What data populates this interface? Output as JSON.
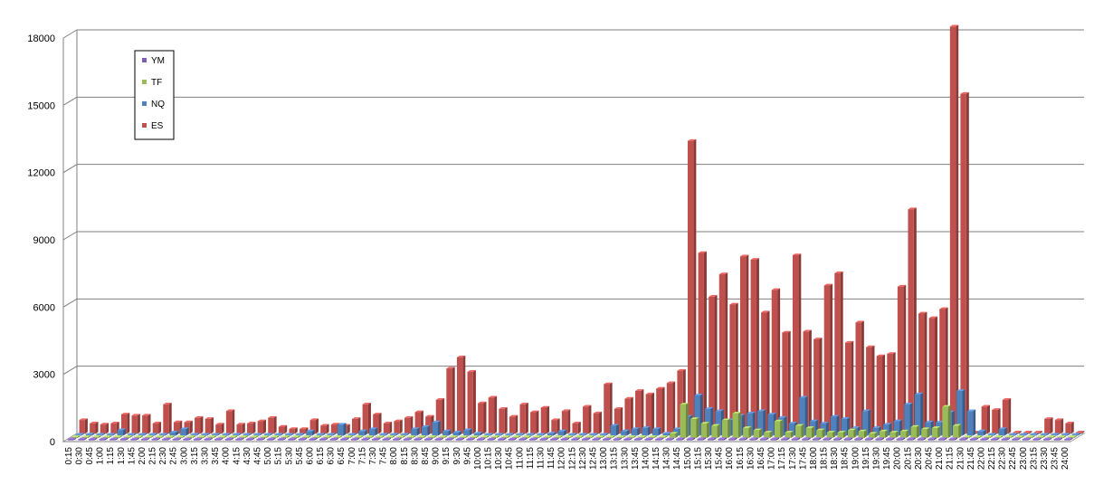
{
  "chart_data": {
    "type": "bar",
    "title": "",
    "xlabel": "",
    "ylabel": "",
    "ylim": [
      0,
      18000
    ],
    "y_ticks": [
      0,
      3000,
      6000,
      9000,
      12000,
      15000,
      18000
    ],
    "grid": true,
    "legend_position": "top-left",
    "categories": [
      "0:15",
      "0:30",
      "0:45",
      "1:00",
      "1:15",
      "1:30",
      "1:45",
      "2:00",
      "2:15",
      "2:30",
      "2:45",
      "3:00",
      "3:15",
      "3:30",
      "3:45",
      "4:00",
      "4:15",
      "4:30",
      "4:45",
      "5:00",
      "5:15",
      "5:30",
      "5:45",
      "6:00",
      "6:15",
      "6:30",
      "6:45",
      "7:00",
      "7:15",
      "7:30",
      "7:45",
      "8:00",
      "8:15",
      "8:30",
      "8:45",
      "9:00",
      "9:15",
      "9:30",
      "9:45",
      "10:00",
      "10:15",
      "10:30",
      "10:45",
      "11:00",
      "11:15",
      "11:30",
      "11:45",
      "12:00",
      "12:15",
      "12:30",
      "12:45",
      "13:00",
      "13:15",
      "13:30",
      "13:45",
      "14:00",
      "14:15",
      "14:30",
      "14:45",
      "15:00",
      "15:15",
      "15:30",
      "15:45",
      "16:00",
      "16:15",
      "16:30",
      "16:45",
      "17:00",
      "17:15",
      "17:30",
      "17:45",
      "18:00",
      "18:15",
      "18:30",
      "18:45",
      "19:00",
      "19:15",
      "19:30",
      "19:45",
      "20:00",
      "20:15",
      "20:30",
      "20:45",
      "21:00",
      "21:15",
      "21:30",
      "21:45",
      "22:00",
      "22:15",
      "22:30",
      "22:45",
      "23:00",
      "23:15",
      "23:30",
      "23:45",
      "24:00"
    ],
    "series": [
      {
        "name": "YM",
        "color": "#7f5fb5",
        "values": [
          0,
          0,
          0,
          0,
          0,
          0,
          0,
          0,
          0,
          0,
          0,
          0,
          0,
          0,
          0,
          0,
          0,
          0,
          0,
          0,
          0,
          0,
          0,
          0,
          0,
          0,
          0,
          0,
          0,
          0,
          0,
          0,
          0,
          0,
          0,
          0,
          0,
          0,
          0,
          0,
          0,
          0,
          0,
          0,
          0,
          0,
          0,
          0,
          0,
          0,
          0,
          0,
          0,
          0,
          0,
          0,
          0,
          0,
          40,
          60,
          50,
          40,
          40,
          50,
          40,
          40,
          40,
          30,
          40,
          30,
          30,
          30,
          30,
          30,
          30,
          30,
          30,
          30,
          30,
          30,
          40,
          30,
          30,
          30,
          40,
          30,
          0,
          0,
          0,
          0,
          0,
          0,
          0,
          0,
          0,
          0
        ]
      },
      {
        "name": "TF",
        "color": "#9bbb59",
        "values": [
          0,
          0,
          0,
          0,
          0,
          0,
          0,
          0,
          0,
          0,
          0,
          0,
          0,
          0,
          0,
          0,
          0,
          0,
          0,
          0,
          0,
          0,
          0,
          0,
          0,
          0,
          0,
          0,
          0,
          0,
          0,
          0,
          0,
          0,
          0,
          0,
          0,
          0,
          0,
          0,
          0,
          0,
          0,
          0,
          0,
          0,
          0,
          0,
          0,
          0,
          0,
          0,
          0,
          0,
          0,
          0,
          0,
          200,
          1500,
          850,
          650,
          550,
          800,
          1100,
          450,
          350,
          250,
          750,
          250,
          550,
          450,
          350,
          250,
          250,
          350,
          300,
          200,
          300,
          250,
          300,
          500,
          400,
          450,
          1400,
          550,
          0,
          0,
          0,
          0,
          0,
          0,
          0,
          0,
          0,
          0,
          0
        ]
      },
      {
        "name": "NQ",
        "color": "#4f81bd",
        "values": [
          0,
          40,
          0,
          0,
          250,
          0,
          0,
          0,
          0,
          150,
          300,
          0,
          0,
          0,
          0,
          0,
          0,
          0,
          0,
          0,
          0,
          0,
          200,
          0,
          0,
          500,
          0,
          200,
          300,
          0,
          0,
          0,
          300,
          400,
          600,
          200,
          150,
          250,
          100,
          0,
          0,
          0,
          0,
          0,
          0,
          100,
          200,
          0,
          0,
          0,
          0,
          450,
          200,
          300,
          350,
          300,
          100,
          300,
          850,
          1800,
          1200,
          1100,
          700,
          900,
          1000,
          1100,
          950,
          800,
          550,
          1700,
          650,
          550,
          850,
          750,
          350,
          1100,
          350,
          500,
          650,
          1400,
          1850,
          600,
          600,
          1050,
          2000,
          1100,
          200,
          0,
          300,
          0,
          0,
          0,
          0,
          0,
          0,
          0
        ]
      },
      {
        "name": "ES",
        "color": "#c0504d",
        "values": [
          600,
          450,
          400,
          450,
          850,
          800,
          800,
          450,
          1300,
          500,
          500,
          700,
          650,
          400,
          1000,
          400,
          450,
          550,
          700,
          300,
          200,
          200,
          600,
          350,
          400,
          350,
          650,
          1300,
          850,
          450,
          550,
          700,
          950,
          750,
          1500,
          2900,
          3400,
          2750,
          1350,
          1600,
          1100,
          750,
          1300,
          950,
          1150,
          600,
          1000,
          450,
          1200,
          900,
          2200,
          1100,
          1550,
          1900,
          1750,
          2000,
          2250,
          2800,
          13050,
          8050,
          6100,
          7100,
          5750,
          7900,
          7750,
          5400,
          6400,
          4500,
          7950,
          4550,
          4200,
          6600,
          7150,
          4050,
          4950,
          3850,
          3450,
          3550,
          6550,
          10000,
          5350,
          5150,
          5550,
          18150,
          15150,
          0,
          1200,
          1050,
          1500,
          0,
          0,
          0,
          650,
          600,
          450,
          0
        ]
      }
    ]
  }
}
